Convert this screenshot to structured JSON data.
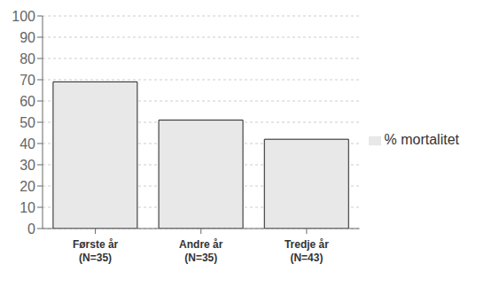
{
  "chart_data": {
    "type": "bar",
    "categories": [
      "Første år\n(N=35)",
      "Andre år\n(N=35)",
      "Tredje år\n(N=43)"
    ],
    "series": [
      {
        "name": "% mortalitet",
        "color": "#e8e8e8",
        "values": [
          69,
          51,
          42
        ]
      }
    ],
    "ylim": [
      0,
      100
    ],
    "yticks": [
      0,
      10,
      20,
      30,
      40,
      50,
      60,
      70,
      80,
      90,
      100
    ],
    "grid": true,
    "legend": "right"
  }
}
